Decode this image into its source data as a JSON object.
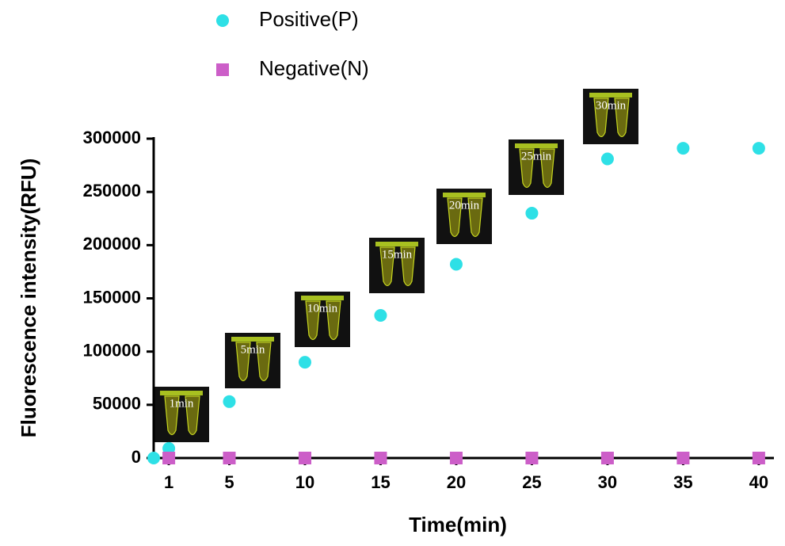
{
  "chart_data": {
    "type": "scatter",
    "xlabel": "Time(min)",
    "ylabel": "Fluorescence intensity(RFU)",
    "series": [
      {
        "name": "Positive(P)",
        "color": "#2ee0e6",
        "marker": "circle",
        "x": [
          0,
          1,
          5,
          10,
          15,
          20,
          25,
          30,
          35,
          40
        ],
        "values": [
          0,
          9000,
          53000,
          90000,
          134000,
          182000,
          230000,
          281000,
          291000,
          291000
        ]
      },
      {
        "name": "Negative(N)",
        "color": "#cc5ec8",
        "marker": "square",
        "x": [
          1,
          5,
          10,
          15,
          20,
          25,
          30,
          35,
          40
        ],
        "values": [
          0,
          0,
          0,
          0,
          0,
          0,
          0,
          0,
          0
        ]
      }
    ],
    "xlim": [
      0,
      41
    ],
    "xticks": [
      1,
      5,
      10,
      15,
      20,
      25,
      30,
      35,
      40
    ],
    "ylim": [
      0,
      300000
    ],
    "yticks": [
      0,
      50000,
      100000,
      150000,
      200000,
      250000,
      300000
    ],
    "annotations": [
      "1min",
      "5min",
      "10min",
      "15min",
      "20min",
      "25min",
      "30min"
    ]
  }
}
